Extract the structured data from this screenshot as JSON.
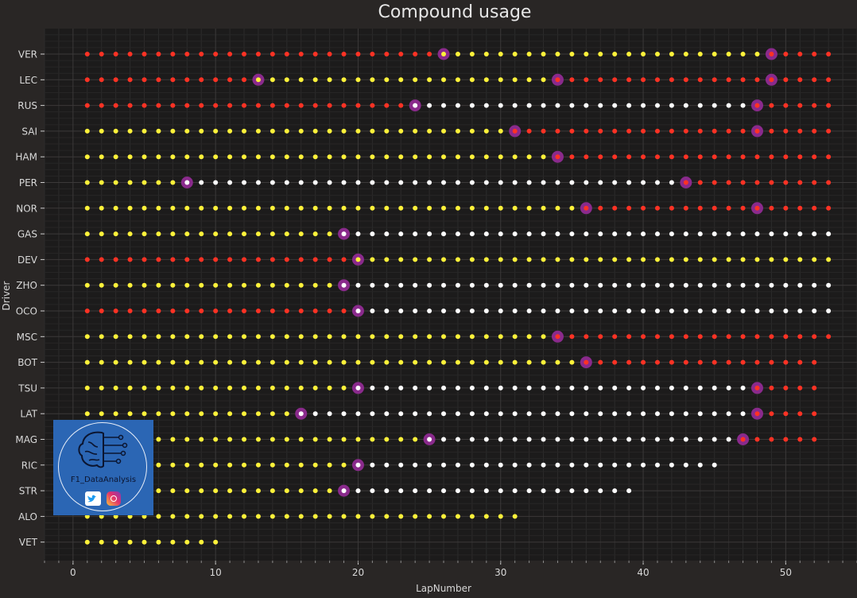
{
  "chart_data": {
    "type": "scatter",
    "title": "Compound usage",
    "xlabel": "LapNumber",
    "ylabel": "Driver",
    "xlim": [
      -2,
      55
    ],
    "xticks": [
      0,
      10,
      20,
      30,
      40,
      50
    ],
    "grid": true,
    "compound_colors": {
      "soft": "#ff3224",
      "medium": "#fff23a",
      "hard": "#ffffff",
      "pit": "#8a2a8c"
    },
    "drivers": [
      {
        "name": "VER",
        "last_lap": 53,
        "stints": [
          {
            "compound": "soft",
            "start": 1,
            "end": 25
          },
          {
            "compound": "medium",
            "start": 26,
            "end": 48
          },
          {
            "compound": "soft",
            "start": 49,
            "end": 53
          }
        ],
        "pits": [
          26,
          49
        ]
      },
      {
        "name": "LEC",
        "last_lap": 53,
        "stints": [
          {
            "compound": "soft",
            "start": 1,
            "end": 12
          },
          {
            "compound": "medium",
            "start": 13,
            "end": 33
          },
          {
            "compound": "soft",
            "start": 34,
            "end": 53
          }
        ],
        "pits": [
          13,
          34,
          49
        ]
      },
      {
        "name": "RUS",
        "last_lap": 53,
        "stints": [
          {
            "compound": "soft",
            "start": 1,
            "end": 23
          },
          {
            "compound": "hard",
            "start": 24,
            "end": 47
          },
          {
            "compound": "soft",
            "start": 48,
            "end": 53
          }
        ],
        "pits": [
          24,
          48
        ]
      },
      {
        "name": "SAI",
        "last_lap": 53,
        "stints": [
          {
            "compound": "medium",
            "start": 1,
            "end": 30
          },
          {
            "compound": "soft",
            "start": 31,
            "end": 53
          }
        ],
        "pits": [
          31,
          48
        ]
      },
      {
        "name": "HAM",
        "last_lap": 53,
        "stints": [
          {
            "compound": "medium",
            "start": 1,
            "end": 33
          },
          {
            "compound": "soft",
            "start": 34,
            "end": 53
          }
        ],
        "pits": [
          34
        ]
      },
      {
        "name": "PER",
        "last_lap": 53,
        "stints": [
          {
            "compound": "medium",
            "start": 1,
            "end": 7
          },
          {
            "compound": "hard",
            "start": 8,
            "end": 42
          },
          {
            "compound": "soft",
            "start": 43,
            "end": 53
          }
        ],
        "pits": [
          8,
          43
        ]
      },
      {
        "name": "NOR",
        "last_lap": 53,
        "stints": [
          {
            "compound": "medium",
            "start": 1,
            "end": 35
          },
          {
            "compound": "soft",
            "start": 36,
            "end": 53
          }
        ],
        "pits": [
          36,
          48
        ]
      },
      {
        "name": "GAS",
        "last_lap": 53,
        "stints": [
          {
            "compound": "medium",
            "start": 1,
            "end": 18
          },
          {
            "compound": "hard",
            "start": 19,
            "end": 53
          }
        ],
        "pits": [
          19
        ]
      },
      {
        "name": "DEV",
        "last_lap": 53,
        "stints": [
          {
            "compound": "soft",
            "start": 1,
            "end": 19
          },
          {
            "compound": "medium",
            "start": 20,
            "end": 53
          }
        ],
        "pits": [
          20
        ]
      },
      {
        "name": "ZHO",
        "last_lap": 53,
        "stints": [
          {
            "compound": "medium",
            "start": 1,
            "end": 18
          },
          {
            "compound": "hard",
            "start": 19,
            "end": 53
          }
        ],
        "pits": [
          19
        ]
      },
      {
        "name": "OCO",
        "last_lap": 53,
        "stints": [
          {
            "compound": "soft",
            "start": 1,
            "end": 19
          },
          {
            "compound": "hard",
            "start": 20,
            "end": 53
          }
        ],
        "pits": [
          20
        ]
      },
      {
        "name": "MSC",
        "last_lap": 53,
        "stints": [
          {
            "compound": "medium",
            "start": 1,
            "end": 33
          },
          {
            "compound": "soft",
            "start": 34,
            "end": 53
          }
        ],
        "pits": [
          34
        ]
      },
      {
        "name": "BOT",
        "last_lap": 52,
        "stints": [
          {
            "compound": "medium",
            "start": 1,
            "end": 35
          },
          {
            "compound": "soft",
            "start": 36,
            "end": 52
          }
        ],
        "pits": [
          36
        ]
      },
      {
        "name": "TSU",
        "last_lap": 52,
        "stints": [
          {
            "compound": "medium",
            "start": 1,
            "end": 19
          },
          {
            "compound": "hard",
            "start": 20,
            "end": 47
          },
          {
            "compound": "soft",
            "start": 48,
            "end": 52
          }
        ],
        "pits": [
          20,
          48
        ]
      },
      {
        "name": "LAT",
        "last_lap": 52,
        "stints": [
          {
            "compound": "medium",
            "start": 1,
            "end": 15
          },
          {
            "compound": "hard",
            "start": 16,
            "end": 47
          },
          {
            "compound": "soft",
            "start": 48,
            "end": 52
          }
        ],
        "pits": [
          16,
          48
        ]
      },
      {
        "name": "MAG",
        "last_lap": 52,
        "stints": [
          {
            "compound": "medium",
            "start": 1,
            "end": 24
          },
          {
            "compound": "hard",
            "start": 25,
            "end": 46
          },
          {
            "compound": "soft",
            "start": 47,
            "end": 52
          }
        ],
        "pits": [
          25,
          47
        ]
      },
      {
        "name": "RIC",
        "last_lap": 45,
        "stints": [
          {
            "compound": "medium",
            "start": 1,
            "end": 19
          },
          {
            "compound": "hard",
            "start": 20,
            "end": 45
          }
        ],
        "pits": [
          20
        ]
      },
      {
        "name": "STR",
        "last_lap": 39,
        "stints": [
          {
            "compound": "medium",
            "start": 1,
            "end": 18
          },
          {
            "compound": "hard",
            "start": 19,
            "end": 39
          }
        ],
        "pits": [
          19
        ]
      },
      {
        "name": "ALO",
        "last_lap": 31,
        "stints": [
          {
            "compound": "medium",
            "start": 1,
            "end": 31
          }
        ],
        "pits": []
      },
      {
        "name": "VET",
        "last_lap": 10,
        "stints": [
          {
            "compound": "medium",
            "start": 1,
            "end": 10
          }
        ],
        "pits": []
      }
    ]
  },
  "watermark": {
    "text": "F1_DataAnalysis",
    "icons": [
      "brain-icon",
      "twitter-icon",
      "instagram-icon"
    ]
  }
}
